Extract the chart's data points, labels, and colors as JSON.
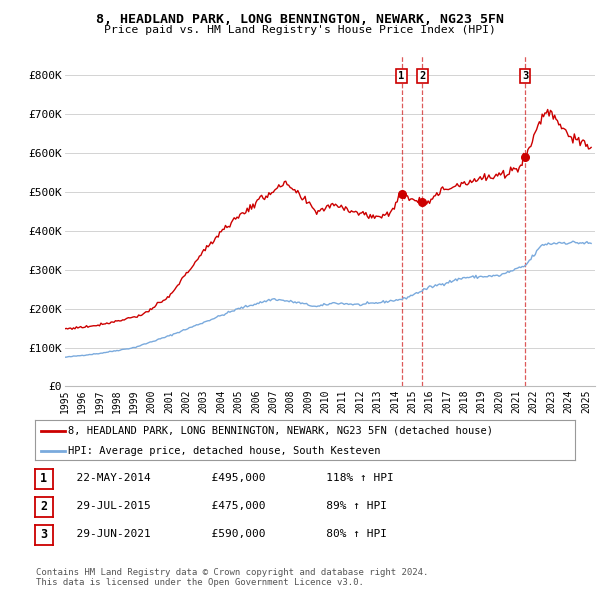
{
  "title1": "8, HEADLAND PARK, LONG BENNINGTON, NEWARK, NG23 5FN",
  "title2": "Price paid vs. HM Land Registry's House Price Index (HPI)",
  "hpi_color": "#7aaadd",
  "price_color": "#cc0000",
  "sale1_date": 2014.39,
  "sale1_price": 495000,
  "sale1_label": "1",
  "sale2_date": 2015.58,
  "sale2_price": 475000,
  "sale2_label": "2",
  "sale3_date": 2021.49,
  "sale3_price": 590000,
  "sale3_label": "3",
  "ylim": [
    0,
    850000
  ],
  "yticks": [
    0,
    100000,
    200000,
    300000,
    400000,
    500000,
    600000,
    700000,
    800000
  ],
  "ytick_labels": [
    "£0",
    "£100K",
    "£200K",
    "£300K",
    "£400K",
    "£500K",
    "£600K",
    "£700K",
    "£800K"
  ],
  "xlim_start": 1995.0,
  "xlim_end": 2025.5,
  "legend_price_label": "8, HEADLAND PARK, LONG BENNINGTON, NEWARK, NG23 5FN (detached house)",
  "legend_hpi_label": "HPI: Average price, detached house, South Kesteven",
  "table_rows": [
    {
      "num": "1",
      "date": "22-MAY-2014",
      "price": "£495,000",
      "hpi": "118% ↑ HPI"
    },
    {
      "num": "2",
      "date": "29-JUL-2015",
      "price": "£475,000",
      "hpi": "89% ↑ HPI"
    },
    {
      "num": "3",
      "date": "29-JUN-2021",
      "price": "£590,000",
      "hpi": "80% ↑ HPI"
    }
  ],
  "footnote": "Contains HM Land Registry data © Crown copyright and database right 2024.\nThis data is licensed under the Open Government Licence v3.0.",
  "background_color": "#ffffff",
  "grid_color": "#cccccc"
}
